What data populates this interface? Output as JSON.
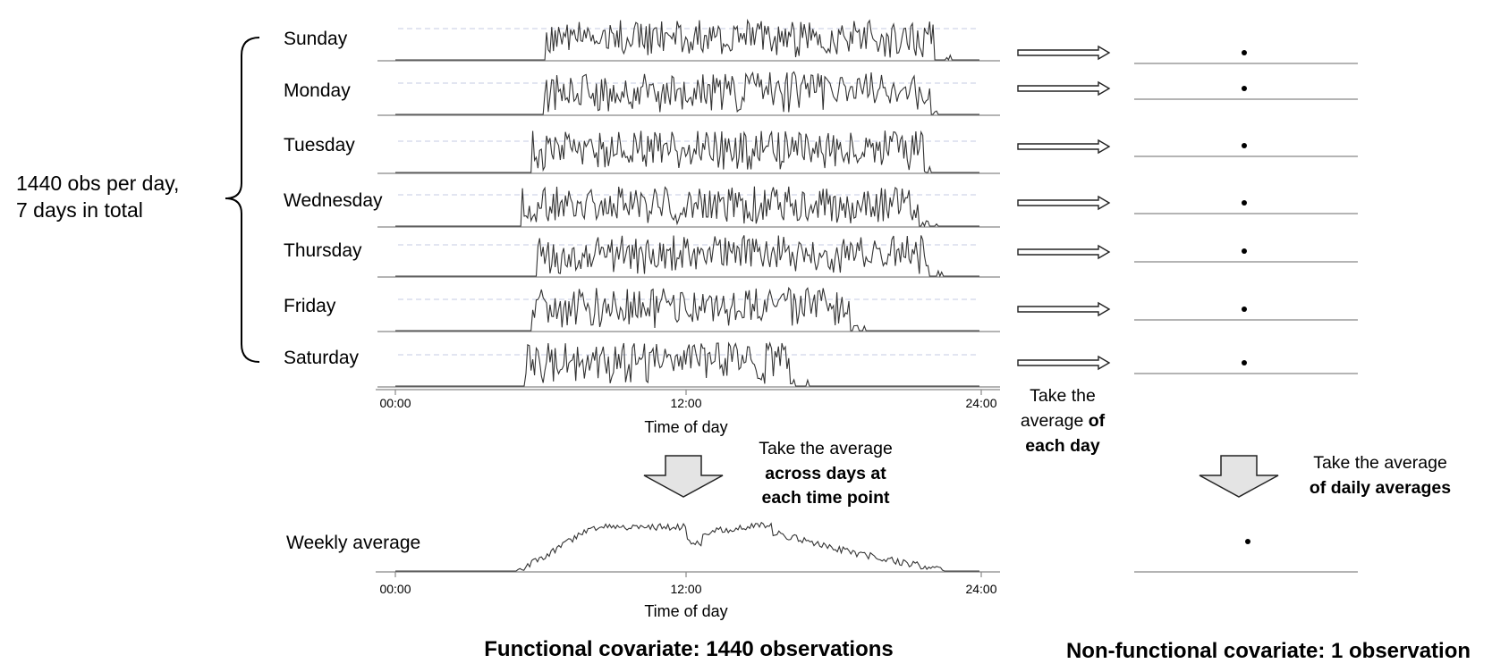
{
  "left_annotation": {
    "line1": "1440 obs per day,",
    "line2": "7 days in total"
  },
  "days": [
    {
      "label": "Sunday",
      "start": 6.2,
      "end": 22.1,
      "level": 0.55,
      "seed": 11
    },
    {
      "label": "Monday",
      "start": 6.1,
      "end": 22.0,
      "level": 0.62,
      "seed": 23
    },
    {
      "label": "Tuesday",
      "start": 5.6,
      "end": 21.7,
      "level": 0.6,
      "seed": 37
    },
    {
      "label": "Wednesday",
      "start": 5.2,
      "end": 21.5,
      "level": 0.55,
      "seed": 41
    },
    {
      "label": "Thursday",
      "start": 5.8,
      "end": 21.9,
      "level": 0.58,
      "seed": 53
    },
    {
      "label": "Friday",
      "start": 5.6,
      "end": 18.7,
      "level": 0.62,
      "seed": 67
    },
    {
      "label": "Saturday",
      "start": 5.3,
      "end": 16.2,
      "level": 0.66,
      "seed": 79
    }
  ],
  "time_axis": {
    "ticks": [
      "00:00",
      "12:00",
      "24:00"
    ],
    "title": "Time of day"
  },
  "weekly": {
    "label": "Weekly average"
  },
  "note_mid": {
    "line1": "Take the",
    "line2_normal": "average ",
    "line2_bold": "of",
    "line3_bold": "each day"
  },
  "note_functional": {
    "line1": "Take the average",
    "line2_bold": "across days at",
    "line3_bold": "each time point"
  },
  "note_nonfunctional": {
    "line1": "Take the average",
    "line2_bold": "of daily averages"
  },
  "footer": {
    "functional": "Functional covariate: 1440 observations",
    "nonfunctional": "Non-functional covariate: 1 observation"
  },
  "colors": {
    "line": "#333333",
    "axis": "#888888",
    "dashed": "#c5cbe3",
    "arrow_fill": "#e4e4e4"
  }
}
